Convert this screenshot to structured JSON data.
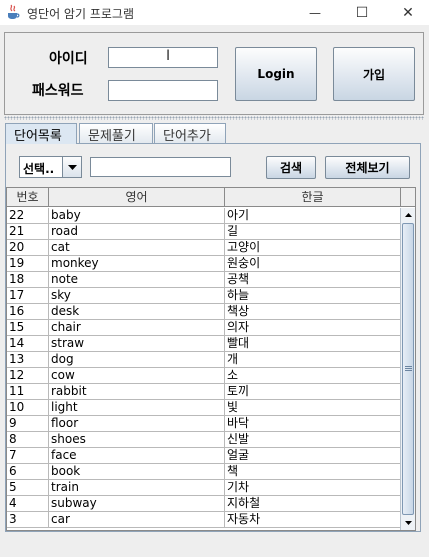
{
  "window": {
    "title": "영단어 암기 프로그램",
    "minimize_glyph": "—",
    "maximize_glyph": "☐",
    "close_glyph": "✕"
  },
  "login": {
    "id_label": "아이디",
    "password_label": "패스워드",
    "id_value": "",
    "password_value": "",
    "login_button": "Login",
    "join_button": "가입"
  },
  "tabs": [
    {
      "label": "단어목록",
      "active": true
    },
    {
      "label": "문제풀기",
      "active": false
    },
    {
      "label": "단어추가",
      "active": false
    }
  ],
  "search": {
    "select_value": "선택..",
    "query": "",
    "search_button": "검색",
    "show_all_button": "전체보기"
  },
  "table": {
    "columns": [
      "번호",
      "영어",
      "한글"
    ],
    "rows": [
      [
        "22",
        "baby",
        "아기"
      ],
      [
        "21",
        "road",
        "길"
      ],
      [
        "20",
        "cat",
        "고양이"
      ],
      [
        "19",
        "monkey",
        "원숭이"
      ],
      [
        "18",
        "note",
        "공책"
      ],
      [
        "17",
        "sky",
        "하늘"
      ],
      [
        "16",
        "desk",
        "책상"
      ],
      [
        "15",
        "chair",
        "의자"
      ],
      [
        "14",
        "straw",
        "빨대"
      ],
      [
        "13",
        "dog",
        "개"
      ],
      [
        "12",
        "cow",
        "소"
      ],
      [
        "11",
        "rabbit",
        "토끼"
      ],
      [
        "10",
        "light",
        "빛"
      ],
      [
        "9",
        "floor",
        "바닥"
      ],
      [
        "8",
        "shoes",
        "신발"
      ],
      [
        "7",
        "face",
        "얼굴"
      ],
      [
        "6",
        "book",
        "책"
      ],
      [
        "5",
        "train",
        "기차"
      ],
      [
        "4",
        "subway",
        "지하철"
      ],
      [
        "3",
        "car",
        "자동차"
      ]
    ]
  },
  "icons": {
    "app": "java-coffee-icon",
    "combo_arrow": "triangle-down-icon",
    "scroll_up": "triangle-up-icon",
    "scroll_down": "triangle-down-icon"
  }
}
